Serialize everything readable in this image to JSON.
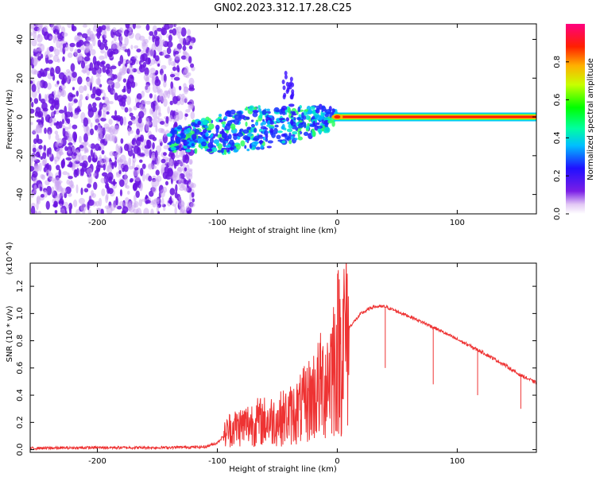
{
  "title": "GN02.2023.312.17.28.C25",
  "chart_data": [
    {
      "type": "heatmap",
      "xlabel": "Height of straight line (km)",
      "ylabel": "Frequency (Hz)",
      "xlim": [
        -256,
        166
      ],
      "ylim": [
        -50,
        48
      ],
      "x_ticks": [
        -200,
        -100,
        0,
        100
      ],
      "y_ticks": [
        -40,
        -20,
        0,
        20,
        40
      ],
      "x_tick_labels": [
        "-200",
        "-100",
        "0",
        "100"
      ],
      "y_tick_labels": [
        "-40",
        "-20",
        "0",
        "20",
        "40"
      ],
      "colorbar": {
        "label": "Normalized spectral amplitude",
        "range": [
          0,
          1
        ],
        "ticks": [
          0,
          0.2,
          0.4,
          0.6,
          0.8
        ],
        "tick_labels": [
          "0.0",
          "0.2",
          "0.4",
          "0.6",
          "0.8"
        ],
        "colormap": "rainbow (purple-blue-cyan-green-yellow-orange-red-pink)"
      },
      "regions": [
        {
          "description": "noise",
          "x_range": [
            -256,
            -120
          ],
          "y_range": [
            -50,
            48
          ],
          "amplitude": 0.1
        },
        {
          "description": "scattered signal",
          "x_range": [
            -140,
            0
          ],
          "frequency_start": -12,
          "frequency_end": 0,
          "amplitude": 0.35
        },
        {
          "description": "steady line",
          "x_range": [
            0,
            166
          ],
          "frequency": 0,
          "amplitude": 0.9
        }
      ]
    },
    {
      "type": "line",
      "xlabel": "Height of straight line (km)",
      "ylabel": "SNR (10 * v/v)",
      "y_multiplier": "(x10^4)",
      "xlim": [
        -256,
        166
      ],
      "ylim": [
        -0.02,
        1.37
      ],
      "x_ticks": [
        -200,
        -100,
        0,
        100
      ],
      "y_ticks": [
        0,
        0.2,
        0.4,
        0.6,
        0.8,
        1.0,
        1.2
      ],
      "x_tick_labels": [
        "-200",
        "-100",
        "0",
        "100"
      ],
      "y_tick_labels": [
        "0.0",
        "0.2",
        "0.4",
        "0.6",
        "0.8",
        "1.0",
        "1.2"
      ],
      "color": "#ee3333",
      "series": [
        {
          "x": [
            -256,
            -200,
            -150,
            -110,
            -100,
            -90,
            -70,
            -50,
            -40,
            -30,
            -20,
            -10,
            0,
            10,
            20,
            30,
            40,
            60,
            80,
            100,
            120,
            140,
            150,
            166
          ],
          "values": [
            0.01,
            0.015,
            0.015,
            0.02,
            0.05,
            0.15,
            0.2,
            0.22,
            0.25,
            0.3,
            0.4,
            0.5,
            0.72,
            0.9,
            1.0,
            1.05,
            1.05,
            0.98,
            0.9,
            0.81,
            0.72,
            0.62,
            0.56,
            0.49
          ]
        }
      ],
      "spikes": [
        {
          "x": 40,
          "y": 0.6
        },
        {
          "x": 80,
          "y": 0.48
        },
        {
          "x": 117,
          "y": 0.4
        },
        {
          "x": 153,
          "y": 0.3
        }
      ]
    }
  ]
}
